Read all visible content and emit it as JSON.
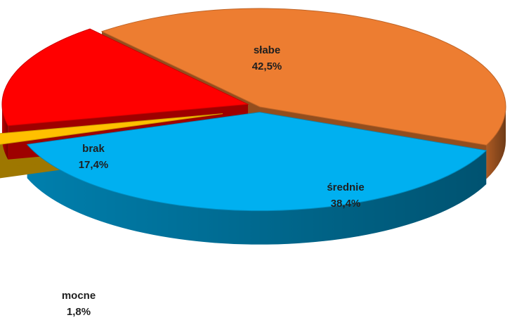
{
  "chart_data": {
    "type": "pie",
    "title": "",
    "slices": [
      {
        "label": "słabe",
        "value": 42.5,
        "value_text": "42,5%",
        "color": "#ED7D31"
      },
      {
        "label": "średnie",
        "value": 38.4,
        "value_text": "38,4%",
        "color": "#00B0F0"
      },
      {
        "label": "mocne",
        "value": 1.8,
        "value_text": "1,8%",
        "color": "#FFC000"
      },
      {
        "label": "brak",
        "value": 17.4,
        "value_text": "17,4%",
        "color": "#FF0000"
      }
    ],
    "legend": "none",
    "style": "3d-exploded"
  }
}
